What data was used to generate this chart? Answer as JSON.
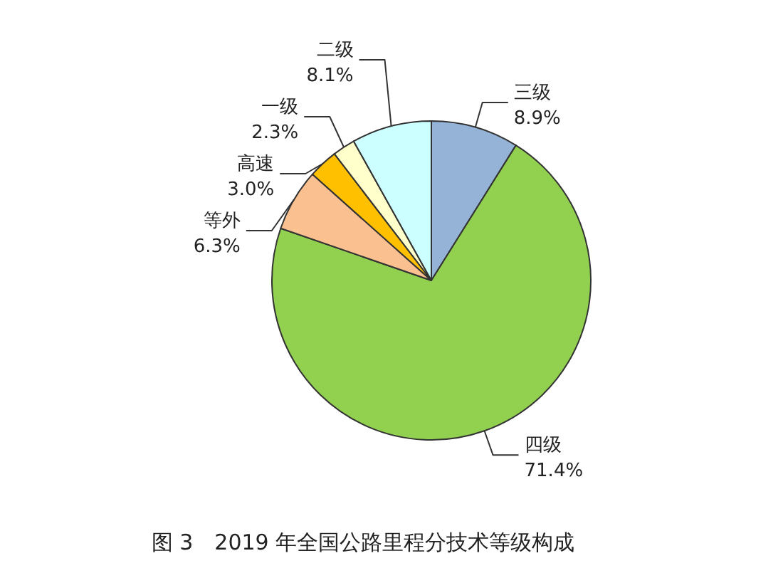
{
  "chart_data": {
    "type": "pie",
    "title": "图 3　2019 年全国公路里程分技术等级构成",
    "categories": [
      "三级",
      "四级",
      "等外",
      "高速",
      "一级",
      "二级"
    ],
    "values": [
      8.9,
      71.4,
      6.3,
      3.0,
      2.3,
      8.1
    ],
    "value_labels": [
      "8.9%",
      "71.4%",
      "6.3%",
      "3.0%",
      "2.3%",
      "8.1%"
    ],
    "colors": [
      "#95b3d7",
      "#92d050",
      "#fac090",
      "#ffc000",
      "#ffffcc",
      "#ccffff"
    ]
  }
}
